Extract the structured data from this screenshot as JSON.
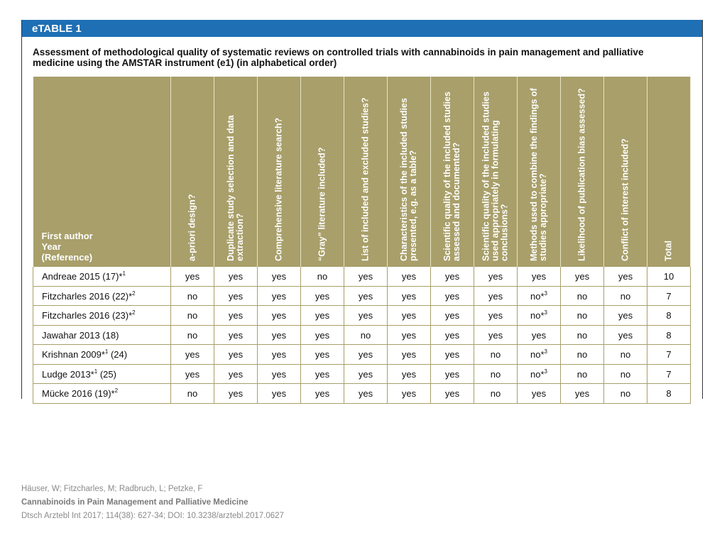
{
  "banner": "eTABLE 1",
  "caption_line1": "Assessment of methodological quality of systematic reviews on controlled trials with cannabinoids in pain management and palliative",
  "caption_line2": "medicine using the AMSTAR instrument (e1) (in alphabetical order)",
  "first_header": [
    "First author",
    "Year",
    "(Reference)"
  ],
  "columns": [
    "a-priori design?",
    "Duplicate study selection and data extraction?",
    "Comprehensive literature search?",
    "“Gray” literature included?",
    "List of included and excluded studies?",
    "Characteristics of the included studies presented, e.g. as a table?",
    "Scientific quality of the included studies assessed and documented?",
    "Scientific quality of the included studies used appropriately in formulating conclusions?",
    "Methods used to combine the findings of studies appropriate?",
    "Likelihood of publication bias assessed?",
    "Conflict of interest included?",
    "Total"
  ],
  "rows": [
    {
      "author": "Andreae 2015 (17)*",
      "sup": "1",
      "author_after": "",
      "cells": [
        "yes",
        "yes",
        "yes",
        "no",
        "yes",
        "yes",
        "yes",
        "yes",
        "yes",
        "yes",
        "yes",
        "10"
      ],
      "cell_sup": [
        "",
        "",
        "",
        "",
        "",
        "",
        "",
        "",
        "",
        "",
        "",
        ""
      ]
    },
    {
      "author": "Fitzcharles 2016 (22)*",
      "sup": "2",
      "author_after": "",
      "cells": [
        "no",
        "yes",
        "yes",
        "yes",
        "yes",
        "yes",
        "yes",
        "yes",
        "no*",
        "no",
        "no",
        "7"
      ],
      "cell_sup": [
        "",
        "",
        "",
        "",
        "",
        "",
        "",
        "",
        "3",
        "",
        "",
        ""
      ]
    },
    {
      "author": "Fitzcharles 2016 (23)*",
      "sup": "2",
      "author_after": "",
      "cells": [
        "no",
        "yes",
        "yes",
        "yes",
        "yes",
        "yes",
        "yes",
        "yes",
        "no*",
        "no",
        "yes",
        "8"
      ],
      "cell_sup": [
        "",
        "",
        "",
        "",
        "",
        "",
        "",
        "",
        "3",
        "",
        "",
        ""
      ]
    },
    {
      "author": "Jawahar 2013 (18)",
      "sup": "",
      "author_after": "",
      "cells": [
        "no",
        "yes",
        "yes",
        "yes",
        "no",
        "yes",
        "yes",
        "yes",
        "yes",
        "no",
        "yes",
        "8"
      ],
      "cell_sup": [
        "",
        "",
        "",
        "",
        "",
        "",
        "",
        "",
        "",
        "",
        "",
        ""
      ]
    },
    {
      "author": "Krishnan 2009*",
      "sup": "1",
      "author_after": " (24)",
      "cells": [
        "yes",
        "yes",
        "yes",
        "yes",
        "yes",
        "yes",
        "yes",
        "no",
        "no*",
        "no",
        "no",
        "7"
      ],
      "cell_sup": [
        "",
        "",
        "",
        "",
        "",
        "",
        "",
        "",
        "3",
        "",
        "",
        ""
      ]
    },
    {
      "author": "Ludge 2013*",
      "sup": "1",
      "author_after": " (25)",
      "cells": [
        "yes",
        "yes",
        "yes",
        "yes",
        "yes",
        "yes",
        "yes",
        "no",
        "no*",
        "no",
        "no",
        "7"
      ],
      "cell_sup": [
        "",
        "",
        "",
        "",
        "",
        "",
        "",
        "",
        "3",
        "",
        "",
        ""
      ]
    },
    {
      "author": "Mücke 2016 (19)*",
      "sup": "2",
      "author_after": "",
      "cells": [
        "no",
        "yes",
        "yes",
        "yes",
        "yes",
        "yes",
        "yes",
        "no",
        "yes",
        "yes",
        "no",
        "8"
      ],
      "cell_sup": [
        "",
        "",
        "",
        "",
        "",
        "",
        "",
        "",
        "",
        "",
        "",
        ""
      ]
    }
  ],
  "citation": {
    "authors": "Häuser, W; Fitzcharles, M; Radbruch, L; Petzke, F",
    "title": "Cannabinoids in Pain Management and Palliative Medicine",
    "source": "Dtsch Arztebl Int 2017; 114(38): 627-34; DOI: 10.3238/arztebl.2017.0627"
  }
}
